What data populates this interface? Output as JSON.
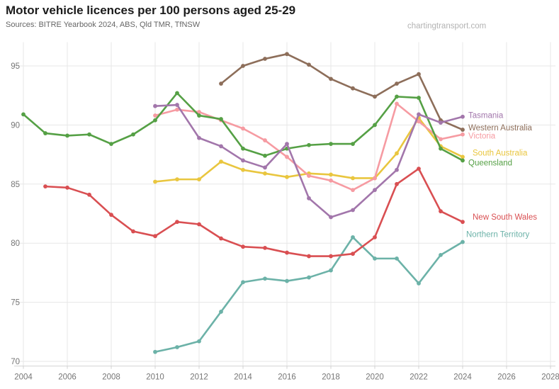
{
  "header": {
    "title": "Motor vehicle licences per 100 persons aged 25-29",
    "sources": "Sources: BITRE Yearbook 2024, ABS, Qld TMR, TfNSW",
    "watermark": "chartingtransport.com"
  },
  "colors": {
    "title_text": "#1b1b1b",
    "sources_text": "#666666",
    "watermark_text": "#b3b3b3",
    "axis_tick_text": "#767676",
    "gridline": "#e7e7e7",
    "axis_line": "#d2d2d2"
  },
  "chart_data": {
    "type": "line",
    "title": "Motor vehicle licences per 100 persons aged 25-29",
    "xlabel": "",
    "ylabel": "",
    "x_ticks": [
      2004,
      2006,
      2008,
      2010,
      2012,
      2014,
      2016,
      2018,
      2020,
      2022,
      2024,
      2026,
      2028
    ],
    "y_ticks": [
      70,
      75,
      80,
      85,
      90,
      95
    ],
    "xlim": [
      2003.5,
      2028.9
    ],
    "ylim": [
      69.6,
      97.0
    ],
    "grid": true,
    "legend_position": "line-end-labels",
    "marker": "circle",
    "series": [
      {
        "name": "Northern Territory",
        "color": "#6cb2a8",
        "start_year": 2010,
        "values": [
          70.8,
          71.2,
          71.7,
          74.2,
          76.7,
          77.0,
          76.8,
          77.1,
          77.7,
          80.5,
          78.7,
          78.7,
          76.6,
          79.0,
          80.1
        ],
        "label_dx": 5,
        "label_dy": -11
      },
      {
        "name": "New South Wales",
        "color": "#d94f52",
        "start_year": 2005,
        "values": [
          84.8,
          84.7,
          84.1,
          82.4,
          81.0,
          80.6,
          81.8,
          81.6,
          80.4,
          79.7,
          79.6,
          79.2,
          78.9,
          78.9,
          79.1,
          80.5,
          85.0,
          86.3,
          82.7,
          81.8
        ],
        "label_dx": 14,
        "label_dy": -7
      },
      {
        "name": "South Australia",
        "color": "#e9c63f",
        "start_year": 2010,
        "values": [
          85.2,
          85.4,
          85.4,
          86.9,
          86.2,
          85.9,
          85.6,
          85.9,
          85.8,
          85.5,
          85.5,
          87.6,
          90.6,
          88.2,
          87.3
        ],
        "label_dx": 14,
        "label_dy": -6
      },
      {
        "name": "Victoria",
        "color": "#f69ba2",
        "start_year": 2010,
        "values": [
          90.8,
          91.3,
          91.1,
          90.4,
          89.7,
          88.7,
          87.3,
          85.7,
          85.3,
          84.5,
          85.5,
          91.8,
          90.3,
          88.8,
          89.2
        ],
        "label_dx": 8,
        "label_dy": 2
      },
      {
        "name": "Western Australia",
        "color": "#8d6e5a",
        "start_year": 2013,
        "values": [
          93.5,
          95.0,
          95.6,
          96.0,
          95.1,
          93.9,
          93.1,
          92.4,
          93.5,
          94.3,
          90.4,
          89.6
        ],
        "label_dx": 8,
        "label_dy": -3
      },
      {
        "name": "Queensland",
        "color": "#55a045",
        "start_year": 2004,
        "values": [
          90.9,
          89.3,
          89.1,
          89.2,
          88.4,
          89.2,
          90.4,
          92.7,
          90.8,
          90.5,
          88.0,
          87.4,
          88.0,
          88.3,
          88.4,
          88.4,
          90.0,
          92.4,
          92.3,
          88.0,
          87.0
        ],
        "label_dx": 8,
        "label_dy": 3
      },
      {
        "name": "Tasmania",
        "color": "#a276ab",
        "start_year": 2010,
        "values": [
          91.6,
          91.7,
          88.9,
          88.2,
          87.0,
          86.4,
          88.4,
          83.8,
          82.2,
          82.8,
          84.5,
          86.2,
          90.9,
          90.2,
          90.7
        ],
        "label_dx": 8,
        "label_dy": -2
      }
    ]
  }
}
